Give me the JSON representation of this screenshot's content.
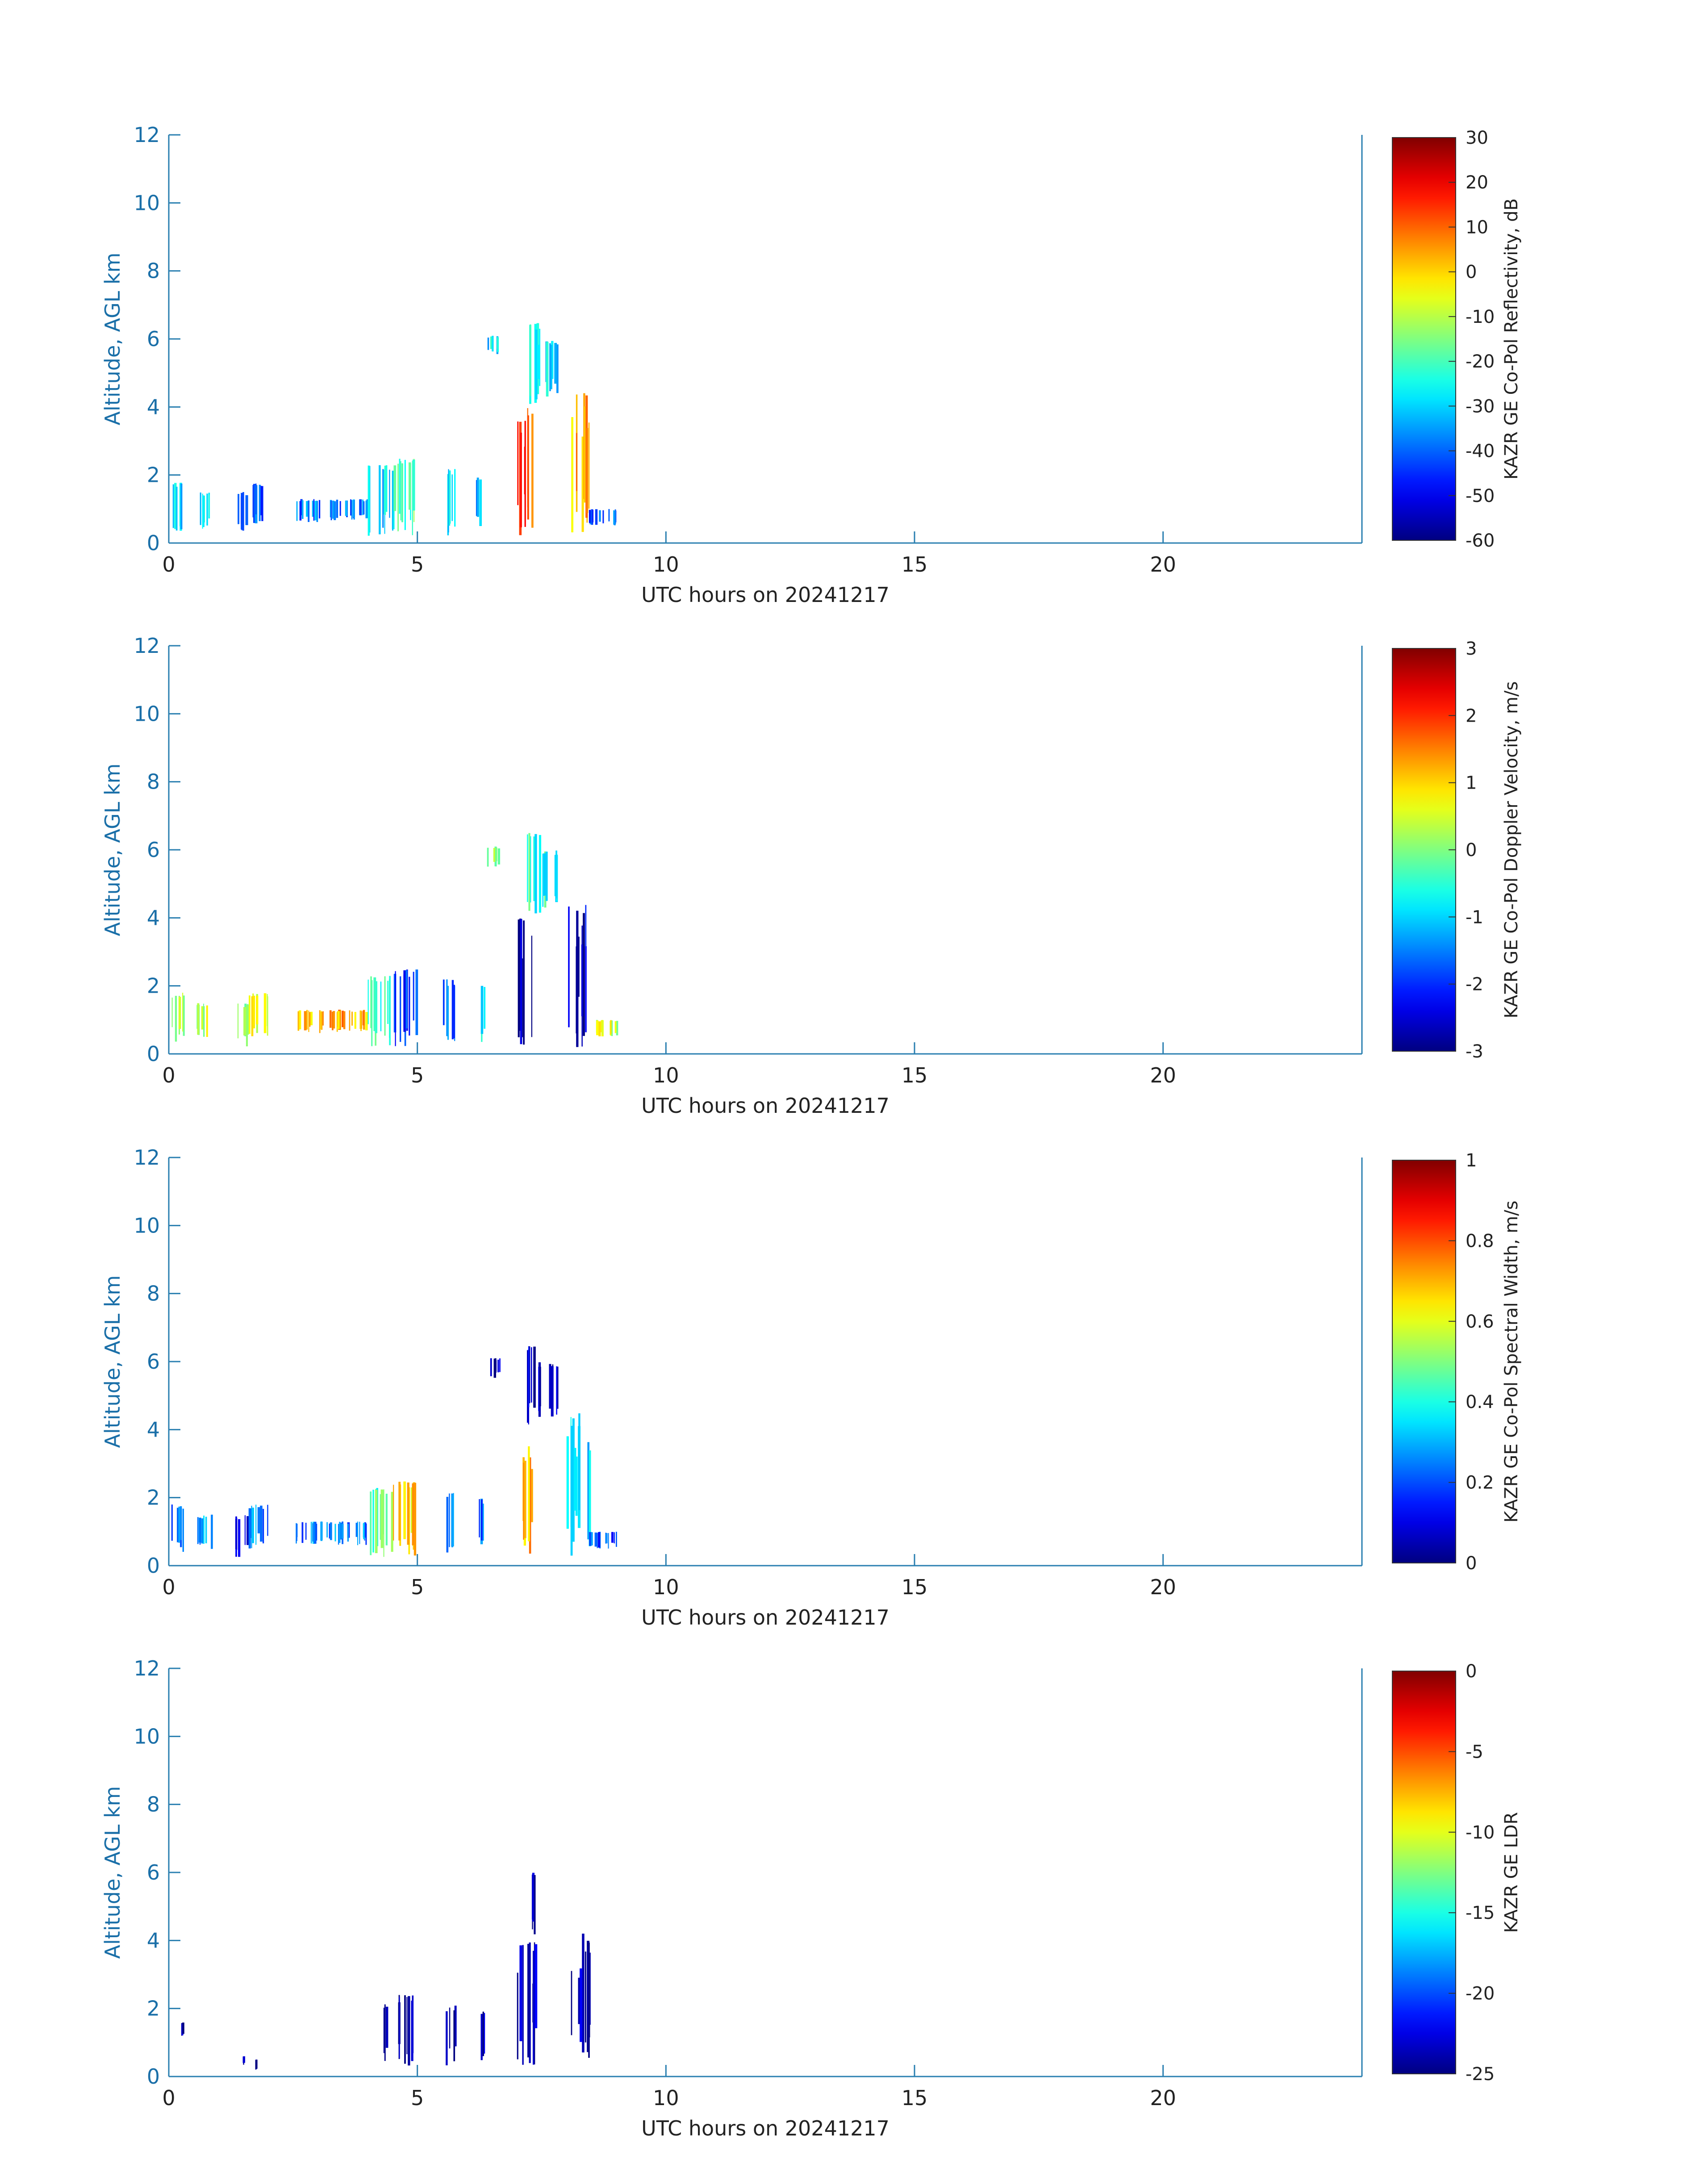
{
  "colors": {
    "axis": "#2a7fb0",
    "tick_text": "#1a6fa8",
    "xlabel_text": "#222222",
    "colorbar_text": "#222222",
    "background": "#ffffff"
  },
  "colormap": "jet",
  "chart_data": [
    {
      "type": "heatmap",
      "title": "",
      "xlabel": "UTC hours on 20241217",
      "ylabel": "Altitude, AGL km",
      "xlim": [
        0,
        24
      ],
      "ylim": [
        0,
        12
      ],
      "xticks": [
        0,
        5,
        10,
        15,
        20
      ],
      "yticks": [
        0,
        2,
        4,
        6,
        8,
        10,
        12
      ],
      "colorbar": {
        "label": "KAZR GE Co-Pol Reflectivity, dB",
        "range": [
          -60,
          30
        ],
        "ticks": [
          -60,
          -50,
          -40,
          -30,
          -20,
          -10,
          0,
          10,
          20,
          30
        ]
      },
      "features": [
        {
          "x": [
            0.05,
            0.3
          ],
          "y": [
            0.3,
            1.8
          ],
          "value": -30
        },
        {
          "x": [
            0.55,
            0.85
          ],
          "y": [
            0.4,
            1.5
          ],
          "value": -25
        },
        {
          "x": [
            1.3,
            1.6
          ],
          "y": [
            0.2,
            1.5
          ],
          "value": -45
        },
        {
          "x": [
            1.6,
            2.0
          ],
          "y": [
            0.5,
            1.8
          ],
          "value": -40
        },
        {
          "x": [
            2.5,
            4.0
          ],
          "y": [
            0.6,
            1.3
          ],
          "value": -38
        },
        {
          "x": [
            4.0,
            4.5
          ],
          "y": [
            0.2,
            2.3
          ],
          "value": -30
        },
        {
          "x": [
            4.5,
            5.0
          ],
          "y": [
            0.2,
            2.5
          ],
          "value": -18
        },
        {
          "x": [
            5.5,
            5.75
          ],
          "y": [
            0.2,
            2.2
          ],
          "value": -30
        },
        {
          "x": [
            6.15,
            6.35
          ],
          "y": [
            0.3,
            2.0
          ],
          "value": -32
        },
        {
          "x": [
            6.4,
            6.65
          ],
          "y": [
            5.5,
            6.1
          ],
          "value": -28
        },
        {
          "x": [
            7.0,
            7.35
          ],
          "y": [
            0.2,
            4.0
          ],
          "value": 12
        },
        {
          "x": [
            7.2,
            7.45
          ],
          "y": [
            4.0,
            6.5
          ],
          "value": -22
        },
        {
          "x": [
            7.4,
            7.8
          ],
          "y": [
            4.3,
            6.0
          ],
          "value": -30
        },
        {
          "x": [
            8.0,
            8.45
          ],
          "y": [
            0.2,
            4.5
          ],
          "value": 3
        },
        {
          "x": [
            8.45,
            9.0
          ],
          "y": [
            0.5,
            1.0
          ],
          "value": -40
        }
      ]
    },
    {
      "type": "heatmap",
      "title": "",
      "xlabel": "UTC hours on 20241217",
      "ylabel": "Altitude, AGL km",
      "xlim": [
        0,
        24
      ],
      "ylim": [
        0,
        12
      ],
      "xticks": [
        0,
        5,
        10,
        15,
        20
      ],
      "yticks": [
        0,
        2,
        4,
        6,
        8,
        10,
        12
      ],
      "colorbar": {
        "label": "KAZR GE Co-Pol Doppler Velocity, m/s",
        "range": [
          -3,
          3
        ],
        "ticks": [
          -3,
          -2,
          -1,
          0,
          1,
          2,
          3
        ]
      },
      "features": [
        {
          "x": [
            0.05,
            0.3
          ],
          "y": [
            0.3,
            1.8
          ],
          "value": 0.3
        },
        {
          "x": [
            0.55,
            0.85
          ],
          "y": [
            0.4,
            1.5
          ],
          "value": 0.4
        },
        {
          "x": [
            1.3,
            1.6
          ],
          "y": [
            0.2,
            1.5
          ],
          "value": 0.2
        },
        {
          "x": [
            1.6,
            2.0
          ],
          "y": [
            0.5,
            1.8
          ],
          "value": 0.6
        },
        {
          "x": [
            2.5,
            4.0
          ],
          "y": [
            0.6,
            1.3
          ],
          "value": 1.2
        },
        {
          "x": [
            4.0,
            4.5
          ],
          "y": [
            0.2,
            2.3
          ],
          "value": -0.5
        },
        {
          "x": [
            4.5,
            5.0
          ],
          "y": [
            0.2,
            2.5
          ],
          "value": -2.0
        },
        {
          "x": [
            5.5,
            5.75
          ],
          "y": [
            0.2,
            2.2
          ],
          "value": -1.5
        },
        {
          "x": [
            6.15,
            6.35
          ],
          "y": [
            0.3,
            2.0
          ],
          "value": -0.8
        },
        {
          "x": [
            6.4,
            6.65
          ],
          "y": [
            5.5,
            6.1
          ],
          "value": 0.1
        },
        {
          "x": [
            7.0,
            7.35
          ],
          "y": [
            0.2,
            4.0
          ],
          "value": -2.8
        },
        {
          "x": [
            7.2,
            7.45
          ],
          "y": [
            4.0,
            6.5
          ],
          "value": -0.5
        },
        {
          "x": [
            7.4,
            7.8
          ],
          "y": [
            4.3,
            6.0
          ],
          "value": -0.6
        },
        {
          "x": [
            8.0,
            8.45
          ],
          "y": [
            0.2,
            4.5
          ],
          "value": -2.5
        },
        {
          "x": [
            8.45,
            9.0
          ],
          "y": [
            0.5,
            1.0
          ],
          "value": 0.4
        }
      ]
    },
    {
      "type": "heatmap",
      "title": "",
      "xlabel": "UTC hours on 20241217",
      "ylabel": "Altitude, AGL km",
      "xlim": [
        0,
        24
      ],
      "ylim": [
        0,
        12
      ],
      "xticks": [
        0,
        5,
        10,
        15,
        20
      ],
      "yticks": [
        0,
        2,
        4,
        6,
        8,
        10,
        12
      ],
      "colorbar": {
        "label": "KAZR GE Co-Pol Spectral Width, m/s",
        "range": [
          0,
          1
        ],
        "ticks": [
          0,
          0.2,
          0.4,
          0.6,
          0.8,
          1
        ]
      },
      "features": [
        {
          "x": [
            0.05,
            0.3
          ],
          "y": [
            0.3,
            1.8
          ],
          "value": 0.22
        },
        {
          "x": [
            0.55,
            0.85
          ],
          "y": [
            0.4,
            1.5
          ],
          "value": 0.28
        },
        {
          "x": [
            1.3,
            1.6
          ],
          "y": [
            0.2,
            1.5
          ],
          "value": 0.15
        },
        {
          "x": [
            1.6,
            2.0
          ],
          "y": [
            0.5,
            1.8
          ],
          "value": 0.25
        },
        {
          "x": [
            2.5,
            4.0
          ],
          "y": [
            0.6,
            1.3
          ],
          "value": 0.25
        },
        {
          "x": [
            4.0,
            4.5
          ],
          "y": [
            0.2,
            2.3
          ],
          "value": 0.45
        },
        {
          "x": [
            4.5,
            5.0
          ],
          "y": [
            0.2,
            2.5
          ],
          "value": 0.65
        },
        {
          "x": [
            5.5,
            5.75
          ],
          "y": [
            0.2,
            2.2
          ],
          "value": 0.3
        },
        {
          "x": [
            6.15,
            6.35
          ],
          "y": [
            0.3,
            2.0
          ],
          "value": 0.2
        },
        {
          "x": [
            6.4,
            6.65
          ],
          "y": [
            5.5,
            6.1
          ],
          "value": 0.05
        },
        {
          "x": [
            7.0,
            7.35
          ],
          "y": [
            0.2,
            4.0
          ],
          "value": 0.7
        },
        {
          "x": [
            7.2,
            7.45
          ],
          "y": [
            4.0,
            6.5
          ],
          "value": 0.08
        },
        {
          "x": [
            7.4,
            7.8
          ],
          "y": [
            4.3,
            6.0
          ],
          "value": 0.06
        },
        {
          "x": [
            8.0,
            8.45
          ],
          "y": [
            0.2,
            4.5
          ],
          "value": 0.35
        },
        {
          "x": [
            8.45,
            9.0
          ],
          "y": [
            0.5,
            1.0
          ],
          "value": 0.2
        }
      ]
    },
    {
      "type": "heatmap",
      "title": "",
      "xlabel": "UTC hours on 20241217",
      "ylabel": "Altitude, AGL km",
      "xlim": [
        0,
        24
      ],
      "ylim": [
        0,
        12
      ],
      "xticks": [
        0,
        5,
        10,
        15,
        20
      ],
      "yticks": [
        0,
        2,
        4,
        6,
        8,
        10,
        12
      ],
      "colorbar": {
        "label": "KAZR GE LDR",
        "range": [
          -25,
          0
        ],
        "ticks": [
          -25,
          -20,
          -15,
          -10,
          -5,
          0
        ]
      },
      "features": [
        {
          "x": [
            0.22,
            0.3
          ],
          "y": [
            1.2,
            1.6
          ],
          "value": -24
        },
        {
          "x": [
            1.4,
            1.5
          ],
          "y": [
            0.3,
            0.6
          ],
          "value": -24
        },
        {
          "x": [
            1.65,
            1.75
          ],
          "y": [
            0.2,
            0.5
          ],
          "value": -24
        },
        {
          "x": [
            4.3,
            4.4
          ],
          "y": [
            0.4,
            2.2
          ],
          "value": -24
        },
        {
          "x": [
            4.6,
            4.95
          ],
          "y": [
            0.3,
            2.4
          ],
          "value": -24
        },
        {
          "x": [
            5.55,
            5.75
          ],
          "y": [
            0.3,
            2.1
          ],
          "value": -24
        },
        {
          "x": [
            6.25,
            6.32
          ],
          "y": [
            0.3,
            2.0
          ],
          "value": -24
        },
        {
          "x": [
            7.0,
            7.4
          ],
          "y": [
            0.3,
            4.0
          ],
          "value": -24
        },
        {
          "x": [
            7.2,
            7.4
          ],
          "y": [
            4.0,
            6.1
          ],
          "value": -24
        },
        {
          "x": [
            8.0,
            8.45
          ],
          "y": [
            0.3,
            4.3
          ],
          "value": -24
        }
      ]
    }
  ]
}
